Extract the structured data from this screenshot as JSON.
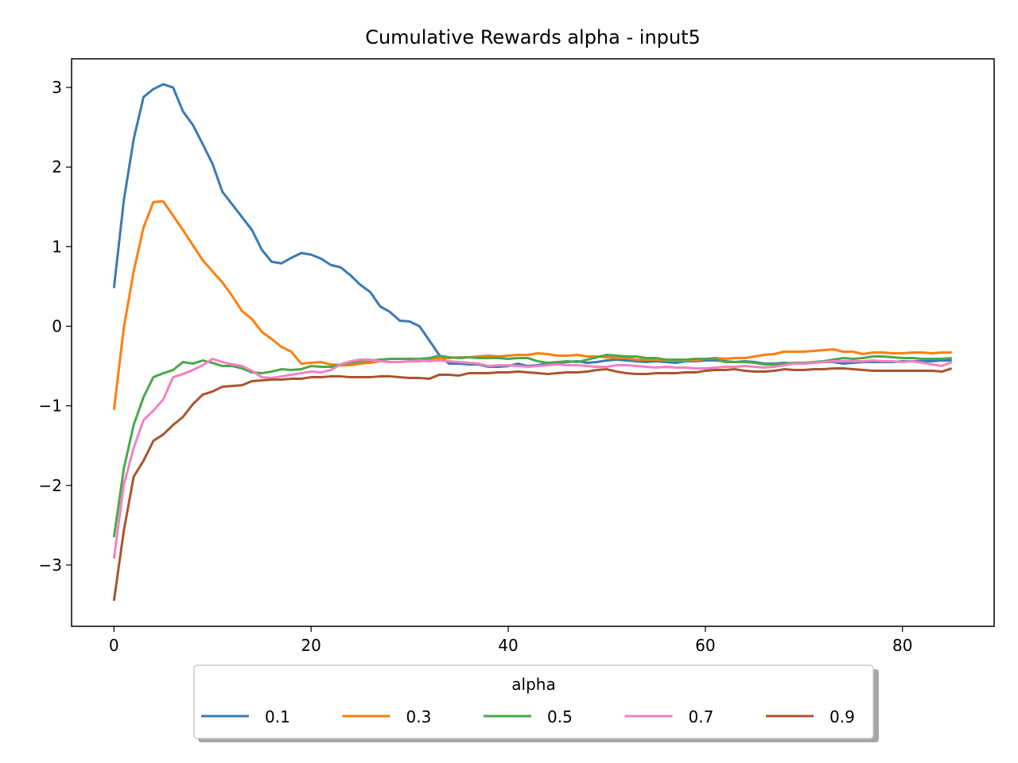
{
  "chart_data": {
    "type": "line",
    "title": "Cumulative Rewards alpha - input5",
    "xlabel": "",
    "ylabel": "",
    "xlim": [
      -4.3,
      89.3
    ],
    "ylim": [
      -3.77,
      3.36
    ],
    "x_ticks": [
      0,
      20,
      40,
      60,
      80
    ],
    "y_ticks": [
      -3,
      -2,
      -1,
      0,
      1,
      2,
      3
    ],
    "x_tick_labels": [
      "0",
      "20",
      "40",
      "60",
      "80"
    ],
    "y_tick_labels": [
      "−3",
      "−2",
      "−1",
      "0",
      "1",
      "2",
      "3"
    ],
    "legend": {
      "title": "alpha",
      "placement": "lower-center-outside",
      "columns": 5
    },
    "grid": false,
    "x": [
      0,
      1,
      2,
      3,
      4,
      5,
      6,
      7,
      8,
      9,
      10,
      11,
      12,
      13,
      14,
      15,
      16,
      17,
      18,
      19,
      20,
      21,
      22,
      23,
      24,
      25,
      26,
      27,
      28,
      29,
      30,
      31,
      32,
      33,
      34,
      35,
      36,
      37,
      38,
      39,
      40,
      41,
      42,
      43,
      44,
      45,
      46,
      47,
      48,
      49,
      50,
      51,
      52,
      53,
      54,
      55,
      56,
      57,
      58,
      59,
      60,
      61,
      62,
      63,
      64,
      65,
      66,
      67,
      68,
      69,
      70,
      71,
      72,
      73,
      74,
      75,
      76,
      77,
      78,
      79,
      80,
      81,
      82,
      83,
      84,
      85
    ],
    "series": [
      {
        "name": "0.1",
        "color": "#3a7ab4",
        "values": [
          0.48,
          1.58,
          2.35,
          2.88,
          2.98,
          3.04,
          3.0,
          2.7,
          2.53,
          2.29,
          2.04,
          1.69,
          1.53,
          1.37,
          1.21,
          0.96,
          0.81,
          0.79,
          0.86,
          0.92,
          0.9,
          0.85,
          0.77,
          0.74,
          0.64,
          0.52,
          0.43,
          0.25,
          0.18,
          0.07,
          0.06,
          0.0,
          -0.18,
          -0.36,
          -0.47,
          -0.47,
          -0.48,
          -0.48,
          -0.51,
          -0.51,
          -0.5,
          -0.47,
          -0.5,
          -0.49,
          -0.47,
          -0.46,
          -0.45,
          -0.44,
          -0.46,
          -0.45,
          -0.43,
          -0.42,
          -0.43,
          -0.44,
          -0.45,
          -0.44,
          -0.45,
          -0.46,
          -0.44,
          -0.44,
          -0.43,
          -0.43,
          -0.44,
          -0.45,
          -0.44,
          -0.45,
          -0.47,
          -0.47,
          -0.46,
          -0.47,
          -0.47,
          -0.46,
          -0.45,
          -0.45,
          -0.47,
          -0.46,
          -0.45,
          -0.45,
          -0.45,
          -0.45,
          -0.44,
          -0.44,
          -0.44,
          -0.44,
          -0.43,
          -0.43
        ]
      },
      {
        "name": "0.3",
        "color": "#ff7f0e",
        "values": [
          -1.05,
          -0.02,
          0.69,
          1.24,
          1.56,
          1.57,
          1.39,
          1.21,
          1.02,
          0.83,
          0.69,
          0.55,
          0.38,
          0.19,
          0.09,
          -0.07,
          -0.16,
          -0.26,
          -0.32,
          -0.47,
          -0.46,
          -0.45,
          -0.48,
          -0.49,
          -0.49,
          -0.47,
          -0.46,
          -0.44,
          -0.45,
          -0.45,
          -0.44,
          -0.44,
          -0.42,
          -0.4,
          -0.4,
          -0.39,
          -0.39,
          -0.38,
          -0.37,
          -0.38,
          -0.37,
          -0.36,
          -0.36,
          -0.34,
          -0.35,
          -0.37,
          -0.37,
          -0.36,
          -0.38,
          -0.38,
          -0.39,
          -0.4,
          -0.4,
          -0.42,
          -0.42,
          -0.42,
          -0.43,
          -0.43,
          -0.43,
          -0.43,
          -0.41,
          -0.4,
          -0.41,
          -0.4,
          -0.4,
          -0.38,
          -0.36,
          -0.35,
          -0.32,
          -0.32,
          -0.32,
          -0.31,
          -0.3,
          -0.29,
          -0.32,
          -0.32,
          -0.35,
          -0.33,
          -0.33,
          -0.34,
          -0.34,
          -0.33,
          -0.33,
          -0.34,
          -0.33,
          -0.33
        ]
      },
      {
        "name": "0.5",
        "color": "#4aa84a",
        "values": [
          -2.65,
          -1.79,
          -1.24,
          -0.89,
          -0.64,
          -0.59,
          -0.55,
          -0.45,
          -0.47,
          -0.43,
          -0.46,
          -0.5,
          -0.5,
          -0.53,
          -0.58,
          -0.59,
          -0.57,
          -0.54,
          -0.55,
          -0.54,
          -0.5,
          -0.51,
          -0.51,
          -0.48,
          -0.46,
          -0.44,
          -0.43,
          -0.42,
          -0.41,
          -0.41,
          -0.41,
          -0.41,
          -0.4,
          -0.37,
          -0.39,
          -0.4,
          -0.39,
          -0.4,
          -0.4,
          -0.4,
          -0.41,
          -0.4,
          -0.4,
          -0.44,
          -0.46,
          -0.45,
          -0.44,
          -0.45,
          -0.42,
          -0.39,
          -0.36,
          -0.37,
          -0.38,
          -0.38,
          -0.4,
          -0.4,
          -0.42,
          -0.42,
          -0.42,
          -0.41,
          -0.41,
          -0.41,
          -0.45,
          -0.45,
          -0.45,
          -0.46,
          -0.48,
          -0.48,
          -0.47,
          -0.46,
          -0.46,
          -0.45,
          -0.44,
          -0.42,
          -0.4,
          -0.41,
          -0.4,
          -0.38,
          -0.38,
          -0.39,
          -0.4,
          -0.4,
          -0.41,
          -0.41,
          -0.41,
          -0.4
        ]
      },
      {
        "name": "0.7",
        "color": "#f281c4",
        "values": [
          -2.92,
          -1.99,
          -1.53,
          -1.18,
          -1.06,
          -0.92,
          -0.64,
          -0.6,
          -0.55,
          -0.49,
          -0.41,
          -0.45,
          -0.48,
          -0.5,
          -0.56,
          -0.64,
          -0.65,
          -0.63,
          -0.61,
          -0.59,
          -0.57,
          -0.58,
          -0.55,
          -0.48,
          -0.44,
          -0.42,
          -0.42,
          -0.44,
          -0.45,
          -0.45,
          -0.44,
          -0.43,
          -0.44,
          -0.43,
          -0.44,
          -0.45,
          -0.46,
          -0.47,
          -0.5,
          -0.49,
          -0.49,
          -0.5,
          -0.51,
          -0.5,
          -0.49,
          -0.48,
          -0.49,
          -0.49,
          -0.5,
          -0.51,
          -0.51,
          -0.49,
          -0.49,
          -0.5,
          -0.51,
          -0.52,
          -0.51,
          -0.52,
          -0.52,
          -0.53,
          -0.53,
          -0.52,
          -0.51,
          -0.51,
          -0.5,
          -0.51,
          -0.52,
          -0.51,
          -0.49,
          -0.47,
          -0.47,
          -0.46,
          -0.45,
          -0.44,
          -0.44,
          -0.44,
          -0.44,
          -0.43,
          -0.44,
          -0.44,
          -0.45,
          -0.44,
          -0.46,
          -0.48,
          -0.5,
          -0.45
        ]
      },
      {
        "name": "0.9",
        "color": "#a8552f",
        "values": [
          -3.45,
          -2.57,
          -1.89,
          -1.69,
          -1.44,
          -1.36,
          -1.24,
          -1.14,
          -0.98,
          -0.86,
          -0.82,
          -0.76,
          -0.75,
          -0.74,
          -0.69,
          -0.68,
          -0.67,
          -0.67,
          -0.66,
          -0.66,
          -0.64,
          -0.64,
          -0.63,
          -0.63,
          -0.64,
          -0.64,
          -0.64,
          -0.63,
          -0.63,
          -0.64,
          -0.65,
          -0.65,
          -0.66,
          -0.61,
          -0.61,
          -0.62,
          -0.59,
          -0.59,
          -0.59,
          -0.58,
          -0.58,
          -0.57,
          -0.58,
          -0.59,
          -0.6,
          -0.59,
          -0.58,
          -0.58,
          -0.57,
          -0.55,
          -0.54,
          -0.57,
          -0.59,
          -0.6,
          -0.6,
          -0.59,
          -0.59,
          -0.59,
          -0.58,
          -0.58,
          -0.56,
          -0.55,
          -0.55,
          -0.54,
          -0.56,
          -0.57,
          -0.57,
          -0.56,
          -0.54,
          -0.55,
          -0.55,
          -0.54,
          -0.54,
          -0.53,
          -0.53,
          -0.54,
          -0.55,
          -0.56,
          -0.56,
          -0.56,
          -0.56,
          -0.56,
          -0.56,
          -0.56,
          -0.57,
          -0.53
        ]
      }
    ]
  }
}
